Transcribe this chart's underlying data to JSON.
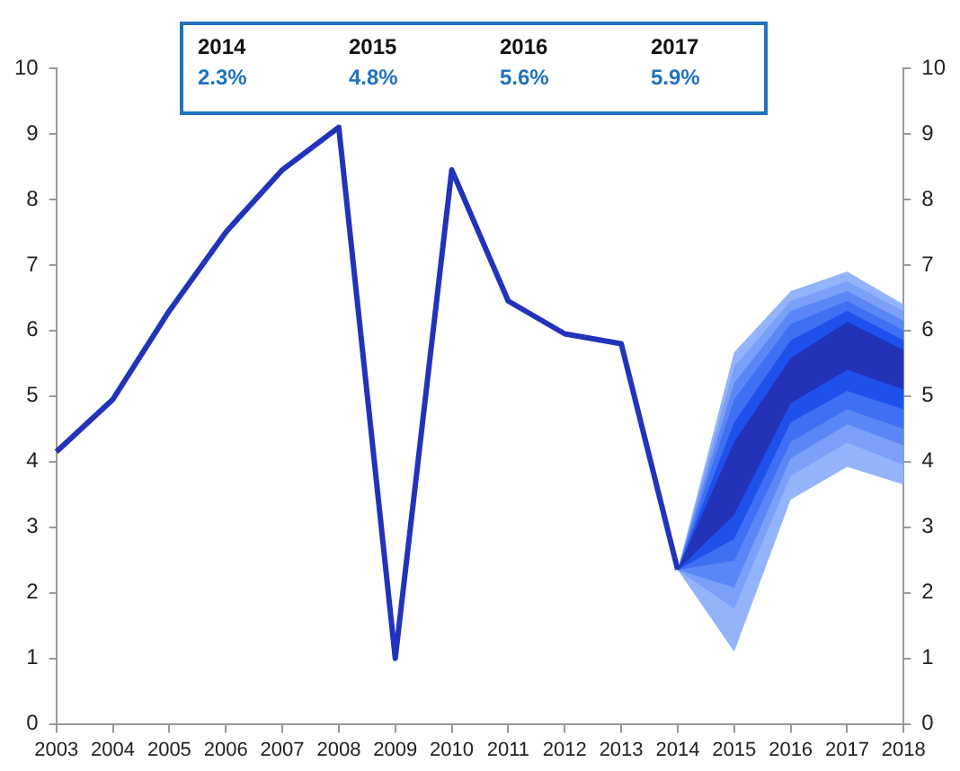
{
  "chart_data": {
    "type": "line",
    "categories": [
      "2003",
      "2004",
      "2005",
      "2006",
      "2007",
      "2008",
      "2009",
      "2010",
      "2011",
      "2012",
      "2013",
      "2014",
      "2015",
      "2016",
      "2017",
      "2018"
    ],
    "series": [
      {
        "color": "#2233bb",
        "values": [
          4.15,
          4.95,
          6.3,
          7.5,
          8.45,
          9.1,
          1.0,
          8.45,
          6.45,
          5.95,
          5.8,
          2.35,
          null,
          null,
          null,
          null
        ]
      },
      {
        "color": "#93b4fb",
        "values": [
          null,
          null,
          null,
          null,
          null,
          null,
          null,
          null,
          null,
          null,
          null,
          null,
          null,
          null,
          null,
          null
        ],
        "lower": [
          null,
          null,
          null,
          null,
          null,
          null,
          null,
          null,
          null,
          null,
          null,
          2.35,
          1.1,
          3.42,
          3.92,
          3.65
        ],
        "upper": [
          null,
          null,
          null,
          null,
          null,
          null,
          null,
          null,
          null,
          null,
          null,
          2.35,
          5.67,
          6.6,
          6.9,
          6.4
        ]
      },
      {
        "color": "#7aa0f8",
        "values": [
          null,
          null,
          null,
          null,
          null,
          null,
          null,
          null,
          null,
          null,
          null,
          null,
          null,
          null,
          null,
          null
        ],
        "lower": [
          null,
          null,
          null,
          null,
          null,
          null,
          null,
          null,
          null,
          null,
          null,
          2.35,
          1.76,
          3.78,
          4.29,
          3.95
        ],
        "upper": [
          null,
          null,
          null,
          null,
          null,
          null,
          null,
          null,
          null,
          null,
          null,
          2.35,
          5.45,
          6.45,
          6.75,
          6.3
        ]
      },
      {
        "color": "#5a87f5",
        "values": [
          null,
          null,
          null,
          null,
          null,
          null,
          null,
          null,
          null,
          null,
          null,
          null,
          null,
          null,
          null,
          null
        ],
        "lower": [
          null,
          null,
          null,
          null,
          null,
          null,
          null,
          null,
          null,
          null,
          null,
          2.35,
          2.08,
          4.05,
          4.57,
          4.25
        ],
        "upper": [
          null,
          null,
          null,
          null,
          null,
          null,
          null,
          null,
          null,
          null,
          null,
          2.35,
          5.2,
          6.3,
          6.6,
          6.15
        ]
      },
      {
        "color": "#3f6ff2",
        "values": [
          null,
          null,
          null,
          null,
          null,
          null,
          null,
          null,
          null,
          null,
          null,
          null,
          null,
          null,
          null,
          null
        ],
        "lower": [
          null,
          null,
          null,
          null,
          null,
          null,
          null,
          null,
          null,
          null,
          null,
          2.35,
          2.49,
          4.3,
          4.8,
          4.5
        ],
        "upper": [
          null,
          null,
          null,
          null,
          null,
          null,
          null,
          null,
          null,
          null,
          null,
          2.35,
          4.95,
          6.1,
          6.45,
          6.0
        ]
      },
      {
        "color": "#1e50ec",
        "values": [
          null,
          null,
          null,
          null,
          null,
          null,
          null,
          null,
          null,
          null,
          null,
          null,
          null,
          null,
          null,
          null
        ],
        "lower": [
          null,
          null,
          null,
          null,
          null,
          null,
          null,
          null,
          null,
          null,
          null,
          2.35,
          2.82,
          4.6,
          5.08,
          4.8
        ],
        "upper": [
          null,
          null,
          null,
          null,
          null,
          null,
          null,
          null,
          null,
          null,
          null,
          2.35,
          4.6,
          5.85,
          6.3,
          5.85
        ]
      },
      {
        "color": "#2233b8",
        "values": [
          null,
          null,
          null,
          null,
          null,
          null,
          null,
          null,
          null,
          null,
          null,
          null,
          null,
          null,
          null,
          null
        ],
        "lower": [
          null,
          null,
          null,
          null,
          null,
          null,
          null,
          null,
          null,
          null,
          null,
          2.35,
          3.19,
          4.89,
          5.4,
          5.1
        ],
        "upper": [
          null,
          null,
          null,
          null,
          null,
          null,
          null,
          null,
          null,
          null,
          null,
          2.35,
          4.3,
          5.58,
          6.13,
          5.7
        ]
      }
    ],
    "ylim": [
      0,
      10
    ],
    "yticks": [
      0,
      1,
      2,
      3,
      4,
      5,
      6,
      7,
      8,
      9,
      10
    ],
    "y2lim": [
      0,
      10
    ],
    "y2ticks": [
      0,
      1,
      2,
      3,
      4,
      5,
      6,
      7,
      8,
      9,
      10
    ],
    "annotations": [
      "2014",
      "2.3%",
      "2015",
      "4.8%",
      "2016",
      "5.6%",
      "2017",
      "5.9%"
    ],
    "grid": false,
    "legend": false,
    "marker": "none",
    "line_style": "solid"
  }
}
